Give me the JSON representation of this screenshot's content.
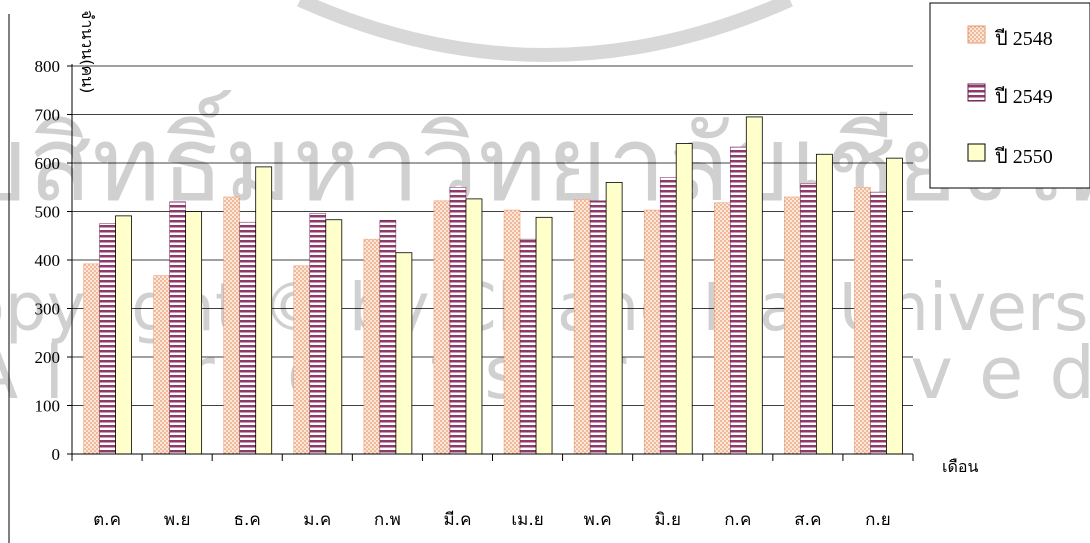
{
  "watermark": {
    "line1": "ลิขสิทธิ์มหาวิทยาลัยเชียงใหม่",
    "line2": "Copyright © by Chiang Mai University",
    "line3": "All rights reserved"
  },
  "chart_data": {
    "type": "bar",
    "ylabel": "จำนวน(คน)",
    "xlabel": "เดือน",
    "ylim": [
      0,
      800
    ],
    "yticks": [
      0,
      100,
      200,
      300,
      400,
      500,
      600,
      700,
      800
    ],
    "grid": true,
    "legend_position": "top-right",
    "categories": [
      "ต.ค",
      "พ.ย",
      "ธ.ค",
      "ม.ค",
      "ก.พ",
      "มี.ค",
      "เม.ย",
      "พ.ค",
      "มิ.ย",
      "ก.ค",
      "ส.ค",
      "ก.ย"
    ],
    "series": [
      {
        "name": "ปี 2548",
        "color": "#f3b493",
        "values": [
          392,
          368,
          530,
          388,
          443,
          522,
          503,
          525,
          503,
          518,
          530,
          550
        ]
      },
      {
        "name": "ปี 2549",
        "color": "#8e3a6b",
        "values": [
          475,
          520,
          478,
          496,
          482,
          550,
          443,
          522,
          570,
          633,
          557,
          540
        ]
      },
      {
        "name": "ปี 2550",
        "color": "#ffffcc",
        "values": [
          491,
          500,
          592,
          483,
          415,
          526,
          488,
          560,
          640,
          695,
          618,
          610
        ]
      }
    ]
  }
}
